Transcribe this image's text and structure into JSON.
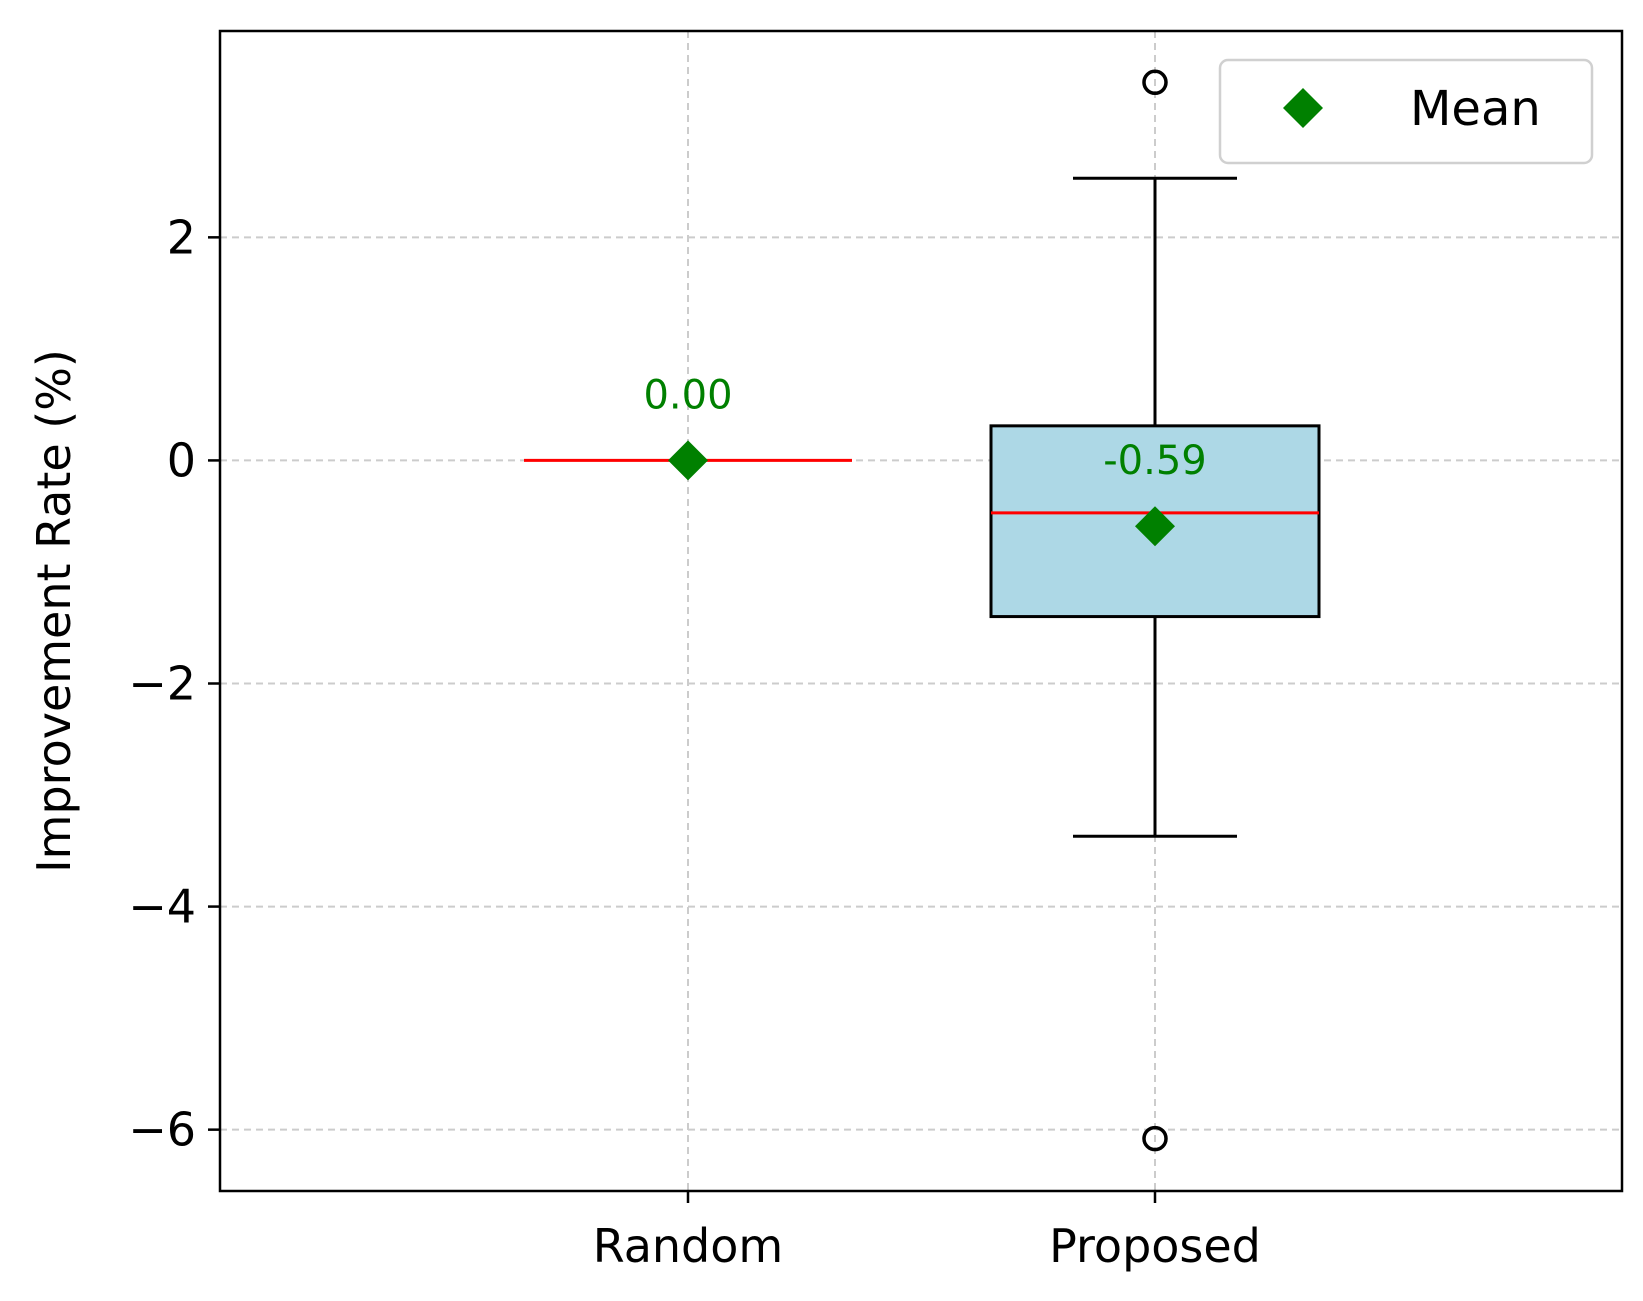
{
  "chart_data": {
    "type": "box",
    "title": "",
    "xlabel": "",
    "ylabel": "Improvement Rate (%)",
    "ylim": [
      -6.55,
      3.85
    ],
    "yticks": [
      2,
      0,
      -2,
      -4,
      -6
    ],
    "ytick_labels": [
      "2",
      "0",
      "−2",
      "−4",
      "−6"
    ],
    "grid": true,
    "legend": {
      "position": "top-right",
      "entries": [
        {
          "label": "Mean",
          "marker": "diamond",
          "color": "#008000"
        }
      ]
    },
    "categories": [
      "Random",
      "Proposed"
    ],
    "boxes": [
      {
        "name": "Random",
        "whisker_low": 0.0,
        "q1": 0.0,
        "median": 0.0,
        "q3": 0.0,
        "whisker_high": 0.0,
        "mean": 0.0,
        "mean_label": "0.00",
        "outliers": []
      },
      {
        "name": "Proposed",
        "whisker_low": -3.37,
        "q1": -1.4,
        "median": -0.47,
        "q3": 0.31,
        "whisker_high": 2.53,
        "mean": -0.59,
        "mean_label": "-0.59",
        "outliers": [
          3.39,
          -6.08
        ]
      }
    ],
    "colors": {
      "box_fill": "#add8e6",
      "median": "#ff0000",
      "mean": "#008000",
      "grid": "#cccccc",
      "axis": "#000000"
    }
  }
}
